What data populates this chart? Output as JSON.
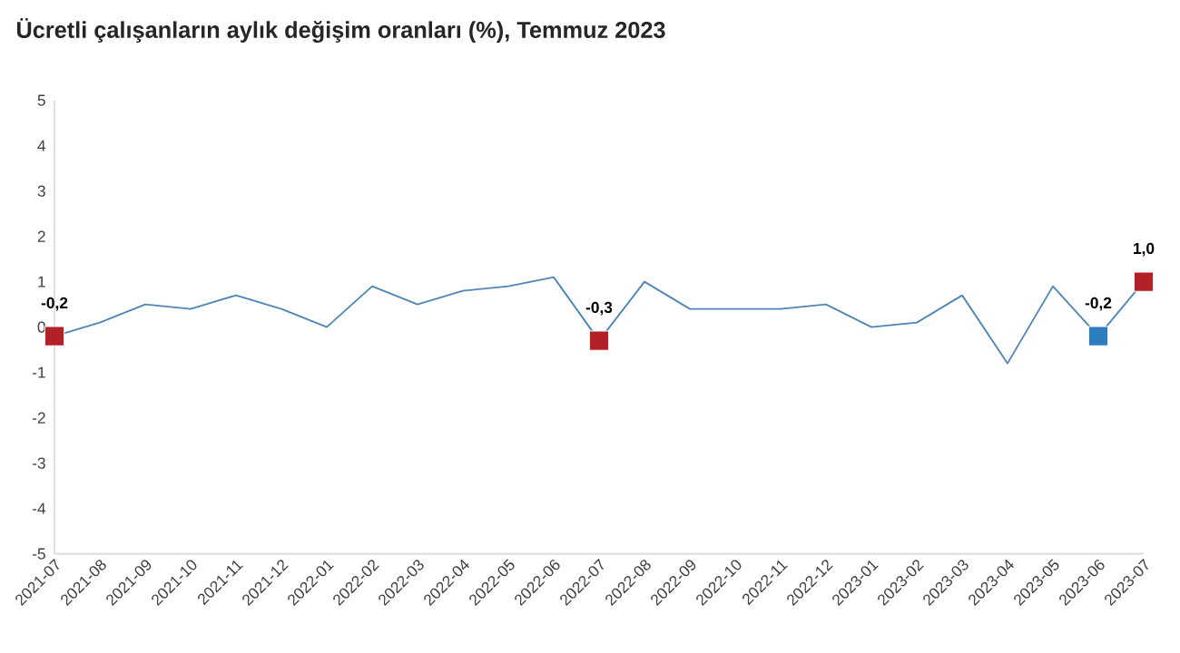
{
  "chart_data": {
    "type": "line",
    "title": "Ücretli çalışanların aylık değişim oranları (%), Temmuz 2023",
    "categories": [
      "2021-07",
      "2021-08",
      "2021-09",
      "2021-10",
      "2021-11",
      "2021-12",
      "2022-01",
      "2022-02",
      "2022-03",
      "2022-04",
      "2022-05",
      "2022-06",
      "2022-07",
      "2022-08",
      "2022-09",
      "2022-10",
      "2022-11",
      "2022-12",
      "2023-01",
      "2023-02",
      "2023-03",
      "2023-04",
      "2023-05",
      "2023-06",
      "2023-07"
    ],
    "ylim": [
      -5,
      5
    ],
    "yticks": [
      -5,
      -4,
      -3,
      -2,
      -1,
      0,
      1,
      2,
      3,
      4,
      5
    ],
    "series": [
      {
        "color": "#4f86b5",
        "values": [
          -0.2,
          0.1,
          0.5,
          0.4,
          0.7,
          0.4,
          0.0,
          0.9,
          0.5,
          0.8,
          0.9,
          1.1,
          -0.3,
          1.0,
          0.4,
          0.4,
          0.4,
          0.5,
          0.0,
          0.1,
          0.7,
          -0.8,
          0.9,
          -0.2,
          1.0
        ]
      },
      {
        "type": "scatter",
        "marker": "square",
        "values": [
          -0.2,
          null,
          null,
          null,
          null,
          null,
          null,
          null,
          null,
          null,
          null,
          null,
          -0.3,
          null,
          null,
          null,
          null,
          null,
          null,
          null,
          null,
          null,
          null,
          -0.2,
          1.0
        ],
        "colors": [
          "#b22028",
          null,
          null,
          null,
          null,
          null,
          null,
          null,
          null,
          null,
          null,
          null,
          "#b22028",
          null,
          null,
          null,
          null,
          null,
          null,
          null,
          null,
          null,
          null,
          "#2e7dbf",
          "#b22028"
        ],
        "value_labels": [
          "-0,2",
          null,
          null,
          null,
          null,
          null,
          null,
          null,
          null,
          null,
          null,
          null,
          "-0,3",
          null,
          null,
          null,
          null,
          null,
          null,
          null,
          null,
          null,
          null,
          "-0,2",
          "1,0"
        ]
      }
    ]
  }
}
